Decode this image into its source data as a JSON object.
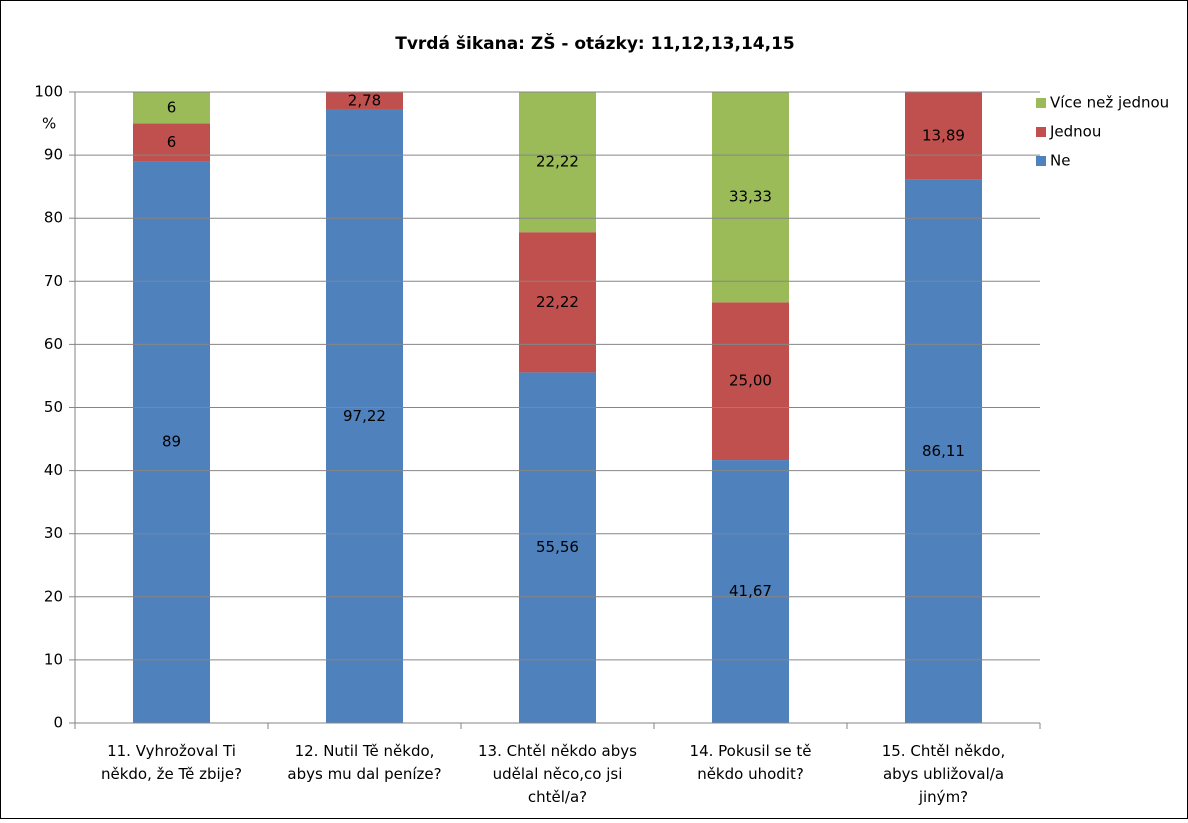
{
  "chart_data": {
    "type": "stacked_bar",
    "title": "Tvrdá šikana: ZŠ -  otázky: 11,12,13,14,15",
    "y_label": "%",
    "categories": [
      [
        "11. Vyhrožoval Ti",
        "někdo, že Tě zbije?"
      ],
      [
        "12. Nutil Tě někdo,",
        "abys mu dal peníze?"
      ],
      [
        "13. Chtěl někdo abys",
        "udělal něco,co jsi",
        "chtěl/a?"
      ],
      [
        "14. Pokusil se tě",
        "někdo uhodit?"
      ],
      [
        "15. Chtěl někdo,",
        "abys ubližoval/a",
        "jiným?"
      ]
    ],
    "series": [
      {
        "name": "Ne",
        "color": "#4f81bd",
        "values": [
          89,
          97.22,
          55.56,
          41.67,
          86.11
        ],
        "value_labels": [
          "89",
          "97,22",
          "55,56",
          "41,67",
          "86,11"
        ]
      },
      {
        "name": "Jednou",
        "color": "#c0504d",
        "values": [
          6,
          2.78,
          22.22,
          25,
          13.89
        ],
        "value_labels": [
          "6",
          "2,78",
          "22,22",
          "25,00",
          "13,89"
        ]
      },
      {
        "name": "Více než jednou",
        "color": "#9bbb59",
        "values": [
          6,
          null,
          22.22,
          33.33,
          null
        ],
        "value_labels": [
          "6",
          null,
          "22,22",
          "33,33",
          null
        ]
      }
    ],
    "ylim": [
      0,
      100
    ],
    "yticks": [
      0,
      10,
      20,
      30,
      40,
      50,
      60,
      70,
      80,
      90,
      100
    ],
    "grid": true,
    "legend": "right"
  }
}
